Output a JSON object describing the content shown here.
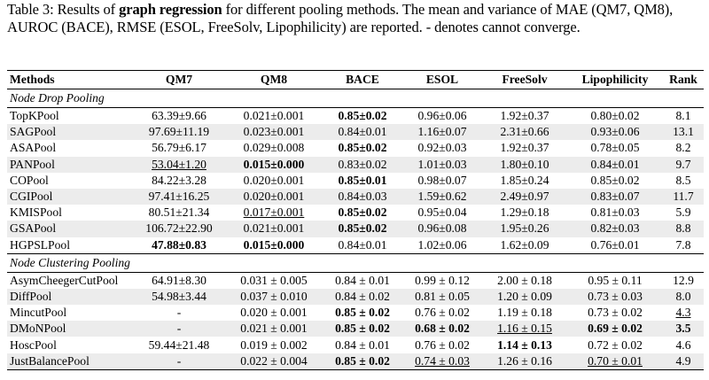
{
  "caption": {
    "label": "Table 3:",
    "pre": " Results of ",
    "bold": "graph regression",
    "post": " for different pooling methods. The mean and variance of MAE (QM7, QM8), AUROC (BACE), RMSE (ESOL, FreeSolv, Lipophilicity) are reported. - denotes cannot converge."
  },
  "headers": [
    "Methods",
    "QM7",
    "QM8",
    "BACE",
    "ESOL",
    "FreeSolv",
    "Lipophilicity",
    "Rank"
  ],
  "sections": [
    {
      "title": "Node Drop Pooling",
      "rows": [
        {
          "method": "TopKPool",
          "cells": [
            "63.39±9.66",
            "0.021±0.001",
            "0.85±0.02",
            "0.96±0.06",
            "1.92±0.37",
            "0.80±0.02",
            "8.1"
          ],
          "fmt": [
            "",
            "",
            "b",
            "",
            "",
            "",
            ""
          ]
        },
        {
          "method": "SAGPool",
          "cells": [
            "97.69±11.19",
            "0.023±0.001",
            "0.84±0.01",
            "1.16±0.07",
            "2.31±0.66",
            "0.93±0.06",
            "13.1"
          ],
          "fmt": [
            "",
            "",
            "",
            "",
            "",
            "",
            ""
          ]
        },
        {
          "method": "ASAPool",
          "cells": [
            "56.79±6.17",
            "0.029±0.008",
            "0.85±0.02",
            "0.92±0.03",
            "1.92±0.37",
            "0.78±0.05",
            "8.2"
          ],
          "fmt": [
            "",
            "",
            "b",
            "",
            "",
            "",
            ""
          ]
        },
        {
          "method": "PANPool",
          "cells": [
            "53.04±1.20",
            "0.015±0.000",
            "0.83±0.02",
            "1.01±0.03",
            "1.80±0.10",
            "0.84±0.01",
            "9.7"
          ],
          "fmt": [
            "u",
            "b",
            "",
            "",
            "",
            "",
            ""
          ]
        },
        {
          "method": "COPool",
          "cells": [
            "84.22±3.28",
            "0.020±0.001",
            "0.85±0.01",
            "0.98±0.07",
            "1.85±0.24",
            "0.85±0.02",
            "8.5"
          ],
          "fmt": [
            "",
            "",
            "b",
            "",
            "",
            "",
            ""
          ]
        },
        {
          "method": "CGIPool",
          "cells": [
            "97.41±16.25",
            "0.020±0.001",
            "0.84±0.03",
            "1.59±0.62",
            "2.49±0.97",
            "0.83±0.07",
            "11.7"
          ],
          "fmt": [
            "",
            "",
            "",
            "",
            "",
            "",
            ""
          ]
        },
        {
          "method": "KMISPool",
          "cells": [
            "80.51±21.34",
            "0.017±0.001",
            "0.85±0.02",
            "0.95±0.04",
            "1.29±0.18",
            "0.81±0.03",
            "5.9"
          ],
          "fmt": [
            "",
            "u",
            "b",
            "",
            "",
            "",
            ""
          ]
        },
        {
          "method": "GSAPool",
          "cells": [
            "106.72±22.90",
            "0.021±0.001",
            "0.85±0.02",
            "0.96±0.08",
            "1.95±0.26",
            "0.82±0.03",
            "8.8"
          ],
          "fmt": [
            "",
            "",
            "b",
            "",
            "",
            "",
            ""
          ]
        },
        {
          "method": "HGPSLPool",
          "cells": [
            "47.88±0.83",
            "0.015±0.000",
            "0.84±0.01",
            "1.02±0.06",
            "1.62±0.09",
            "0.76±0.01",
            "7.8"
          ],
          "fmt": [
            "b",
            "b",
            "",
            "",
            "",
            "",
            ""
          ]
        }
      ]
    },
    {
      "title": "Node Clustering Pooling",
      "rows": [
        {
          "method": "AsymCheegerCutPool",
          "cells": [
            "64.91±8.30",
            "0.031 ± 0.005",
            "0.84 ± 0.01",
            "0.99 ± 0.12",
            "2.00 ± 0.18",
            "0.95 ± 0.11",
            "12.9"
          ],
          "fmt": [
            "",
            "",
            "",
            "",
            "",
            "",
            ""
          ]
        },
        {
          "method": "DiffPool",
          "cells": [
            "54.98±3.44",
            "0.037 ± 0.010",
            "0.84 ± 0.02",
            "0.81 ± 0.05",
            "1.20 ± 0.09",
            "0.73 ± 0.03",
            "8.0"
          ],
          "fmt": [
            "",
            "",
            "",
            "",
            "",
            "",
            ""
          ]
        },
        {
          "method": "MincutPool",
          "cells": [
            "-",
            "0.020 ± 0.001",
            "0.85 ± 0.02",
            "0.76 ± 0.02",
            "1.19 ± 0.18",
            "0.73 ± 0.02",
            "4.3"
          ],
          "fmt": [
            "",
            "",
            "b",
            "",
            "",
            "",
            "u"
          ]
        },
        {
          "method": "DMoNPool",
          "cells": [
            "-",
            "0.021 ± 0.001",
            "0.85 ± 0.02",
            "0.68 ± 0.02",
            "1.16 ± 0.15",
            "0.69 ± 0.02",
            "3.5"
          ],
          "fmt": [
            "",
            "",
            "b",
            "b",
            "u",
            "b",
            "b"
          ]
        },
        {
          "method": "HoscPool",
          "cells": [
            "59.44±21.48",
            "0.019 ± 0.002",
            "0.84 ± 0.01",
            "0.76 ± 0.02",
            "1.14 ± 0.13",
            "0.72 ± 0.02",
            "4.6"
          ],
          "fmt": [
            "",
            "",
            "",
            "",
            "b",
            "",
            ""
          ]
        },
        {
          "method": "JustBalancePool",
          "cells": [
            "-",
            "0.022 ± 0.004",
            "0.85 ± 0.02",
            "0.74 ± 0.03",
            "1.26 ± 0.16",
            "0.70 ± 0.01",
            "4.9"
          ],
          "fmt": [
            "",
            "",
            "b",
            "u",
            "",
            "u",
            ""
          ]
        }
      ]
    }
  ]
}
